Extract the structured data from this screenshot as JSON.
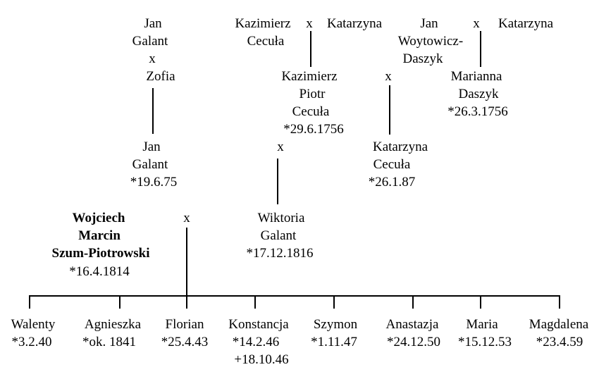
{
  "marriage_symbol": "x",
  "people": {
    "jan_galant_sr": {
      "first": "Jan",
      "last": "Galant"
    },
    "zofia": {
      "first": "Zofia"
    },
    "kazimierz_cecula_sr": {
      "first": "Kazimierz",
      "last": "Cecuła"
    },
    "katarzyna_1": {
      "first": "Katarzyna"
    },
    "jan_woytowicz": {
      "first": "Jan",
      "last_1": "Woytowicz-",
      "last_2": "Daszyk"
    },
    "katarzyna_2": {
      "first": "Katarzyna"
    },
    "kazimierz_piotr": {
      "first": "Kazimierz",
      "middle": "Piotr",
      "last": "Cecuła",
      "birth": "*29.6.1756"
    },
    "marianna_daszyk": {
      "first": "Marianna",
      "last": "Daszyk",
      "birth": "*26.3.1756"
    },
    "jan_galant_jr": {
      "first": "Jan",
      "last": "Galant",
      "birth": "*19.6.75"
    },
    "katarzyna_cecula": {
      "first": "Katarzyna",
      "last": "Cecuła",
      "birth": "*26.1.87"
    },
    "wojciech": {
      "first": "Wojciech",
      "middle": "Marcin",
      "last": "Szum-Piotrowski",
      "birth": "*16.4.1814"
    },
    "wiktoria_galant": {
      "first": "Wiktoria",
      "last": "Galant",
      "birth": "*17.12.1816"
    }
  },
  "children": [
    {
      "name": "Walenty",
      "birth": "*3.2.40"
    },
    {
      "name": "Agnieszka",
      "birth": "*ok. 1841"
    },
    {
      "name": "Florian",
      "birth": "*25.4.43"
    },
    {
      "name": "Konstancja",
      "birth": "*14.2.46",
      "death": "+18.10.46"
    },
    {
      "name": "Szymon",
      "birth": "*1.11.47"
    },
    {
      "name": "Anastazja",
      "birth": "*24.12.50"
    },
    {
      "name": "Maria",
      "birth": "*15.12.53"
    },
    {
      "name": "Magdalena",
      "birth": "*23.4.59"
    }
  ]
}
